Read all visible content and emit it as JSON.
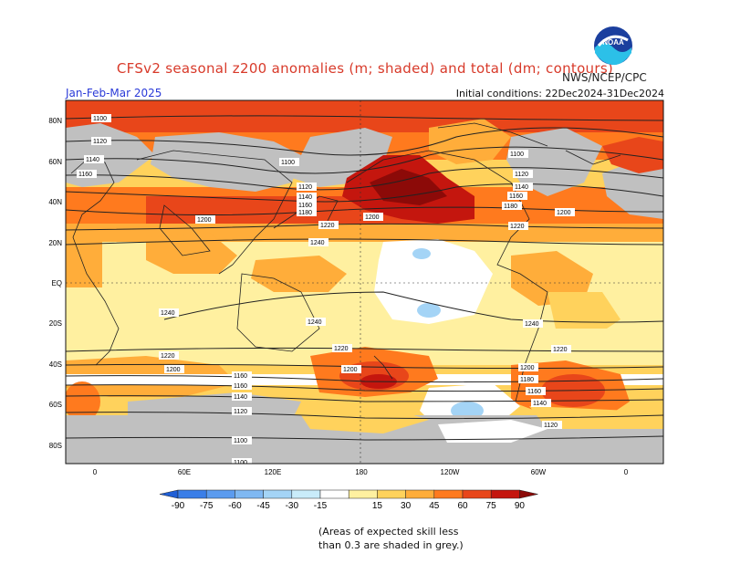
{
  "header": {
    "title": "CFSv2 seasonal z200 anomalies (m; shaded) and total (dm; contours)",
    "agency": "NWS/NCEP/CPC",
    "period": "Jan-Feb-Mar 2025",
    "initial_conditions": "Initial conditions: 22Dec2024-31Dec2024",
    "logo_text": "NOAA"
  },
  "map": {
    "lat_labels": [
      "80N",
      "60N",
      "40N",
      "20N",
      "EQ",
      "20S",
      "40S",
      "60S",
      "80S"
    ],
    "lon_labels": [
      "0",
      "60E",
      "120E",
      "180",
      "120W",
      "60W",
      "0"
    ],
    "contour_labels": [
      "1100",
      "1120",
      "1140",
      "1160",
      "1180",
      "1200",
      "1220",
      "1240"
    ]
  },
  "colorbar": {
    "ticks": [
      "-90",
      "-75",
      "-60",
      "-45",
      "-30",
      "-15",
      "15",
      "30",
      "45",
      "60",
      "75",
      "90"
    ],
    "colors": [
      "#1f5fd6",
      "#3a7ee8",
      "#5b9bef",
      "#7fb8f2",
      "#a4d4f6",
      "#c9ecfa",
      "#ffffff",
      "#fff0a0",
      "#ffd25c",
      "#ffad3a",
      "#ff7a1e",
      "#e8461a",
      "#c4160e",
      "#8c0a08"
    ]
  },
  "footnote": {
    "line1": "(Areas of expected skill less",
    "line2": "than 0.3 are shaded in grey.)"
  }
}
